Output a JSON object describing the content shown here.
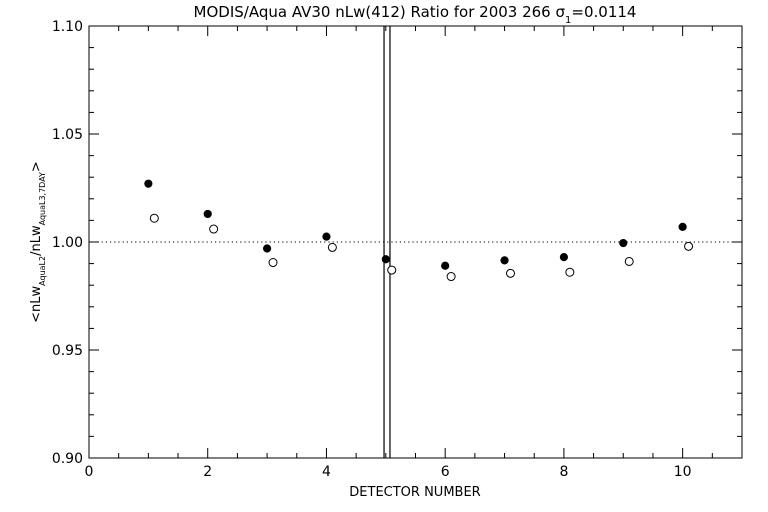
{
  "chart_data": {
    "type": "scatter",
    "title_parts": {
      "prefix": "MODIS/Aqua AV30 nLw(412) Ratio for 2003 266 ",
      "sigma": "σ",
      "sigma_sub": "1",
      "suffix": "=0.0114"
    },
    "xlabel": "DETECTOR NUMBER",
    "ylabel_parts": {
      "a": "<nLw",
      "a_sub": "AquaL2",
      "b": "/nLw",
      "b_sub": "AquaL3,7DAY",
      "c": ">"
    },
    "xlim": [
      0,
      11
    ],
    "ylim": [
      0.9,
      1.1
    ],
    "x_ticks": [
      {
        "value": 0,
        "label": "0"
      },
      {
        "value": 2,
        "label": "2"
      },
      {
        "value": 4,
        "label": "4"
      },
      {
        "value": 6,
        "label": "6"
      },
      {
        "value": 8,
        "label": "8"
      },
      {
        "value": 10,
        "label": "10"
      }
    ],
    "x_minor_step": 0.5,
    "y_ticks": [
      {
        "value": 0.9,
        "label": "0.90"
      },
      {
        "value": 0.95,
        "label": "0.95"
      },
      {
        "value": 1.0,
        "label": "1.00"
      },
      {
        "value": 1.05,
        "label": "1.05"
      },
      {
        "value": 1.1,
        "label": "1.10"
      }
    ],
    "y_minor_step": 0.01,
    "reference_line_y": 1.0,
    "vertical_lines_x": [
      4.97,
      5.07
    ],
    "series": [
      {
        "marker": "filled-circle",
        "points": [
          {
            "x": 1.0,
            "y": 1.027
          },
          {
            "x": 2.0,
            "y": 1.013
          },
          {
            "x": 3.0,
            "y": 0.997
          },
          {
            "x": 4.0,
            "y": 1.0025
          },
          {
            "x": 5.0,
            "y": 0.992
          },
          {
            "x": 6.0,
            "y": 0.989
          },
          {
            "x": 7.0,
            "y": 0.9915
          },
          {
            "x": 8.0,
            "y": 0.993
          },
          {
            "x": 9.0,
            "y": 0.9995
          },
          {
            "x": 10.0,
            "y": 1.007
          }
        ]
      },
      {
        "marker": "open-circle",
        "points": [
          {
            "x": 1.1,
            "y": 1.011
          },
          {
            "x": 2.1,
            "y": 1.006
          },
          {
            "x": 3.1,
            "y": 0.9905
          },
          {
            "x": 4.1,
            "y": 0.9975
          },
          {
            "x": 5.1,
            "y": 0.987
          },
          {
            "x": 6.1,
            "y": 0.984
          },
          {
            "x": 7.1,
            "y": 0.9855
          },
          {
            "x": 8.1,
            "y": 0.986
          },
          {
            "x": 9.1,
            "y": 0.991
          },
          {
            "x": 10.1,
            "y": 0.998
          }
        ]
      }
    ]
  }
}
